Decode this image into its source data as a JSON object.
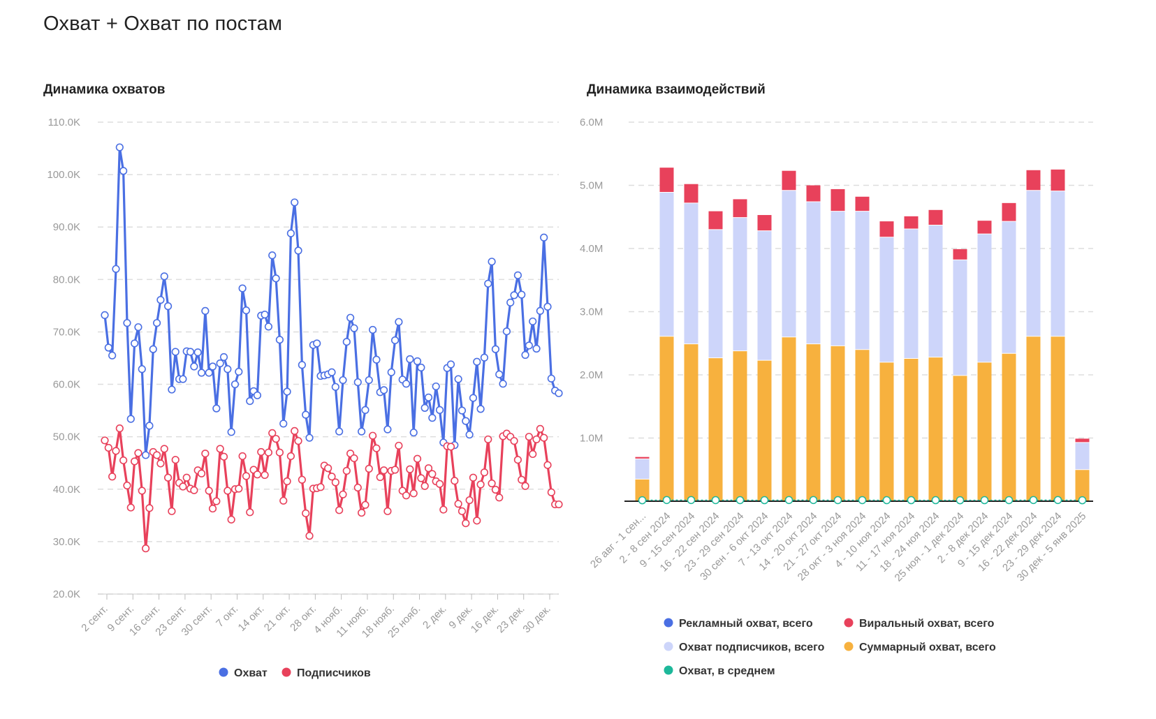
{
  "page": {
    "title": "Охват + Охват по постам"
  },
  "colors": {
    "reach": "#4A6FE3",
    "subscribers": "#E8415B",
    "ad": "#4A6FE3",
    "viral": "#E8415B",
    "followers": "#CDD5FA",
    "total": "#F7B13E",
    "average": "#1DB89A",
    "grid": "#dddddd",
    "axis": "#222222"
  },
  "chart_data": [
    {
      "type": "line",
      "title": "Динамика охватов",
      "ylim": [
        20000,
        110000
      ],
      "y_ticks": [
        "20.0K",
        "30.0K",
        "40.0K",
        "50.0K",
        "60.0K",
        "70.0K",
        "80.0K",
        "90.0K",
        "100.0K",
        "110.0K"
      ],
      "x_ticks": [
        "2 сент.",
        "9 сент.",
        "16 сент.",
        "23 сент.",
        "30 сент.",
        "7 окт.",
        "14 окт.",
        "21 окт.",
        "28 окт.",
        "4 нояб.",
        "11 нояб.",
        "18 нояб.",
        "25 нояб.",
        "2 дек.",
        "9 дек.",
        "16 дек.",
        "23 дек.",
        "30 дек."
      ],
      "grid": true,
      "legend_position": "bottom",
      "series": [
        {
          "name": "Охват",
          "color": "#4A6FE3",
          "values": [
            73200,
            67000,
            65500,
            82000,
            105200,
            100700,
            71700,
            53400,
            67800,
            70900,
            62900,
            46500,
            52100,
            66700,
            71700,
            76100,
            80600,
            74900,
            59000,
            66200,
            61000,
            61000,
            66300,
            66200,
            63400,
            66100,
            62200,
            74000,
            62200,
            63400,
            55400,
            64000,
            65200,
            62900,
            50900,
            60000,
            62400,
            78300,
            74100,
            56800,
            58700,
            57900,
            73100,
            73300,
            71000,
            84600,
            80200,
            68500,
            52500,
            58600,
            88800,
            94700,
            85500,
            63700,
            54200,
            49800,
            67500,
            67800,
            61600,
            61700,
            61900,
            62300,
            59500,
            51000,
            60800,
            68100,
            72700,
            70700,
            60400,
            51000,
            55100,
            60800,
            70400,
            64700,
            58500,
            58900,
            51400,
            62300,
            68400,
            71900,
            60900,
            60100,
            64800,
            50800,
            64400,
            63200,
            55500,
            57500,
            53600,
            59600,
            55100,
            48900,
            63100,
            63800,
            48400,
            61000,
            55000,
            53000,
            50400,
            57400,
            64300,
            55300,
            65100,
            79200,
            83400,
            66700,
            61900,
            60100,
            70100,
            75600,
            77000,
            80800,
            77100,
            65600,
            67400,
            72000,
            66800,
            74000,
            88000,
            74800,
            61100,
            58800,
            58300
          ]
        },
        {
          "name": "Подписчиков",
          "color": "#E8415B",
          "values": [
            49300,
            47900,
            42400,
            47300,
            51600,
            45500,
            40700,
            36500,
            45300,
            46900,
            39700,
            28700,
            36400,
            47100,
            46500,
            44900,
            47700,
            42200,
            35800,
            45600,
            41200,
            40500,
            42200,
            40100,
            39800,
            43600,
            43000,
            46800,
            39700,
            36300,
            37700,
            47700,
            46200,
            39700,
            34200,
            40000,
            40100,
            46300,
            42500,
            35600,
            43700,
            42800,
            47100,
            42700,
            47000,
            50700,
            49600,
            47000,
            37800,
            41500,
            46300,
            51100,
            49200,
            41800,
            35400,
            31100,
            40100,
            40200,
            40400,
            44500,
            44000,
            42400,
            41300,
            36000,
            39000,
            43500,
            46800,
            45900,
            40300,
            35500,
            37000,
            43900,
            50200,
            47800,
            42300,
            43600,
            35800,
            43500,
            43700,
            48300,
            39700,
            38800,
            43800,
            39200,
            45800,
            42100,
            40600,
            44000,
            42900,
            41500,
            41000,
            36100,
            48200,
            48100,
            41600,
            37200,
            35800,
            33500,
            37900,
            42200,
            34000,
            40900,
            43200,
            49500,
            41100,
            39900,
            38400,
            50100,
            50600,
            50000,
            49200,
            45600,
            41800,
            40600,
            50000,
            46700,
            49500,
            51500,
            49800,
            44600,
            39400,
            37100,
            37100
          ]
        }
      ]
    },
    {
      "type": "bar",
      "title": "Динамика взаимодействий",
      "ylim": [
        0,
        6000000
      ],
      "y_ticks": [
        "1.0M",
        "2.0M",
        "3.0M",
        "4.0M",
        "5.0M",
        "6.0M"
      ],
      "categories": [
        "26 авг - 1 сен...",
        "2 - 8 сен 2024",
        "9 - 15 сен 2024",
        "16 - 22 сен 2024",
        "23 - 29 сен 2024",
        "30 сен - 6 окт 2024",
        "7 - 13 окт 2024",
        "14 - 20 окт 2024",
        "21 - 27 окт 2024",
        "28 окт - 3 ноя 2024",
        "4 - 10 ноя 2024",
        "11 - 17 ноя 2024",
        "18 - 24 ноя 2024",
        "25 ноя - 1 дек 2024",
        "2 - 8 дек 2024",
        "9 - 15 дек 2024",
        "16 - 22 дек 2024",
        "23 - 29 дек 2024",
        "30 дек - 5 янв 2025"
      ],
      "stacked": true,
      "grid": true,
      "legend_position": "bottom",
      "series": [
        {
          "name": "Рекламный охват, всего",
          "color": "#4A6FE3",
          "values": [
            0,
            0,
            0,
            0,
            0,
            0,
            0,
            0,
            0,
            0,
            0,
            0,
            0,
            0,
            0,
            0,
            0,
            0,
            0
          ]
        },
        {
          "name": "Суммарный охват, всего",
          "color": "#F7B13E",
          "values": [
            350000,
            2610000,
            2490000,
            2270000,
            2380000,
            2230000,
            2600000,
            2490000,
            2460000,
            2400000,
            2200000,
            2260000,
            2280000,
            1990000,
            2200000,
            2340000,
            2610000,
            2610000,
            500000
          ]
        },
        {
          "name": "Охват подписчиков, всего",
          "color": "#CDD5FA",
          "values": [
            320000,
            2280000,
            2230000,
            2030000,
            2110000,
            2050000,
            2320000,
            2250000,
            2130000,
            2190000,
            1980000,
            2050000,
            2090000,
            1830000,
            2030000,
            2090000,
            2310000,
            2300000,
            430000
          ]
        },
        {
          "name": "Виральный охват, всего",
          "color": "#E8415B",
          "values": [
            30000,
            390000,
            300000,
            290000,
            290000,
            250000,
            310000,
            260000,
            350000,
            230000,
            250000,
            200000,
            240000,
            170000,
            210000,
            290000,
            320000,
            340000,
            60000
          ]
        },
        {
          "name": "Охват, в среднем",
          "color": "#1DB89A",
          "values": [
            15000,
            18000,
            18000,
            17000,
            17000,
            16000,
            18000,
            18000,
            17000,
            17000,
            16000,
            16000,
            16000,
            15000,
            16000,
            17000,
            18000,
            18000,
            15000
          ]
        }
      ]
    }
  ]
}
